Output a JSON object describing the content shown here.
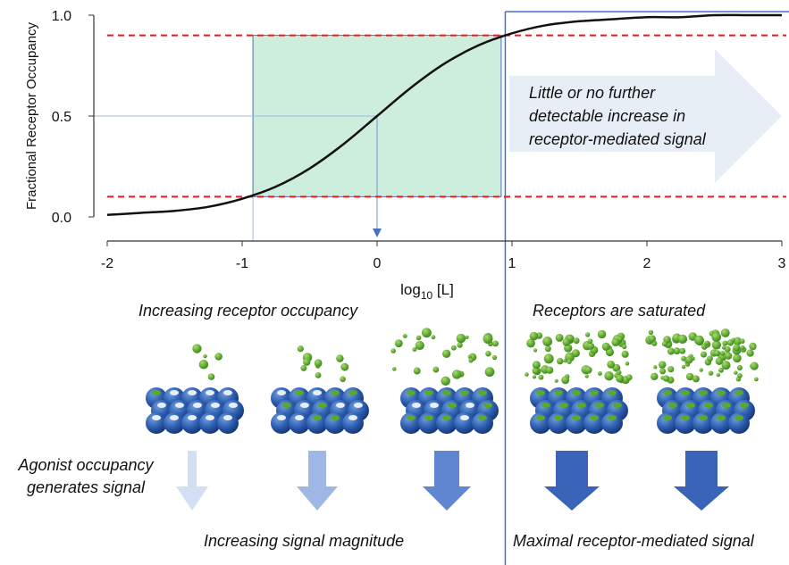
{
  "chart_data": {
    "type": "line",
    "y_label": "Fractional Receptor Occupancy",
    "x_label": [
      "log",
      "10",
      " [L]"
    ],
    "x": [
      -2,
      -1.75,
      -1.5,
      -1.25,
      -1,
      -0.75,
      -0.5,
      -0.25,
      0,
      0.25,
      0.5,
      0.75,
      1,
      1.25,
      1.5,
      1.75,
      2,
      2.25,
      2.5,
      2.75,
      3
    ],
    "series": [
      {
        "color": "#111111",
        "values": [
          0.01,
          0.02,
          0.03,
          0.05,
          0.09,
          0.15,
          0.24,
          0.36,
          0.5,
          0.64,
          0.76,
          0.85,
          0.91,
          0.95,
          0.97,
          0.98,
          0.99,
          0.99,
          1.0,
          1.0,
          1.0
        ]
      }
    ],
    "xlim": [
      -2,
      3
    ],
    "ylim": [
      0,
      1
    ],
    "xticks": [
      -2,
      -1,
      0,
      1,
      2,
      3
    ],
    "yticks": [
      {
        "value": 0,
        "label": "0.0"
      },
      0.5,
      {
        "value": 1,
        "label": "1.0"
      }
    ],
    "hlines": [
      0.1,
      0.9
    ],
    "hline_color": "#e02020",
    "shaded_region": {
      "x": [
        -0.92,
        0.92
      ],
      "y": [
        0.1,
        0.9
      ],
      "color": "#cdeedd"
    },
    "vline": 0.95,
    "midpoint": [
      0,
      0.5
    ],
    "annotation": [
      "Little or no further",
      "detectable increase in",
      "receptor-mediated signal"
    ],
    "labels": {
      "occupancy": "Increasing receptor occupancy",
      "saturated": "Receptors are saturated",
      "agonist": [
        "Agonist occupancy",
        "generates signal"
      ],
      "magnitude": "Increasing signal magnitude",
      "maximal": "Maximal receptor-mediated signal"
    }
  }
}
